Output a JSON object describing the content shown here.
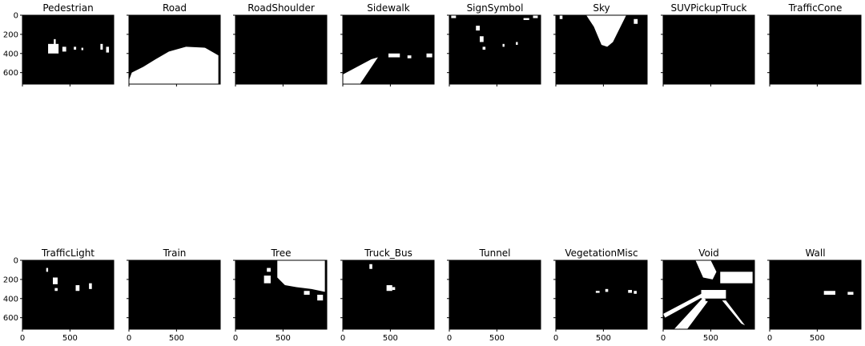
{
  "panels": [
    {
      "title": "Pedestrian",
      "mask": [
        {
          "type": "rect",
          "x": 270,
          "y": 300,
          "w": 110,
          "h": 100
        },
        {
          "type": "rect",
          "x": 330,
          "y": 250,
          "w": 20,
          "h": 60
        },
        {
          "type": "rect",
          "x": 420,
          "y": 330,
          "w": 40,
          "h": 50
        },
        {
          "type": "rect",
          "x": 540,
          "y": 330,
          "w": 25,
          "h": 30
        },
        {
          "type": "rect",
          "x": 620,
          "y": 340,
          "w": 20,
          "h": 25
        },
        {
          "type": "rect",
          "x": 820,
          "y": 300,
          "w": 25,
          "h": 60
        },
        {
          "type": "rect",
          "x": 880,
          "y": 330,
          "w": 30,
          "h": 60
        }
      ]
    },
    {
      "title": "Road",
      "mask": [
        {
          "type": "poly",
          "points": [
            [
              0,
              680
            ],
            [
              30,
              600
            ],
            [
              150,
              540
            ],
            [
              280,
              460
            ],
            [
              420,
              380
            ],
            [
              600,
              330
            ],
            [
              800,
              340
            ],
            [
              940,
              420
            ],
            [
              940,
              736
            ],
            [
              0,
              736
            ]
          ]
        }
      ]
    },
    {
      "title": "RoadShoulder",
      "mask": []
    },
    {
      "title": "Sidewalk",
      "mask": [
        {
          "type": "poly",
          "points": [
            [
              0,
              620
            ],
            [
              300,
              460
            ],
            [
              370,
              440
            ],
            [
              170,
              736
            ],
            [
              0,
              736
            ]
          ]
        },
        {
          "type": "rect",
          "x": 480,
          "y": 400,
          "w": 120,
          "h": 40
        },
        {
          "type": "rect",
          "x": 680,
          "y": 420,
          "w": 40,
          "h": 30
        },
        {
          "type": "rect",
          "x": 880,
          "y": 400,
          "w": 60,
          "h": 40
        }
      ]
    },
    {
      "title": "SignSymbol",
      "mask": [
        {
          "type": "rect",
          "x": 20,
          "y": 0,
          "w": 50,
          "h": 30
        },
        {
          "type": "rect",
          "x": 280,
          "y": 110,
          "w": 40,
          "h": 50
        },
        {
          "type": "rect",
          "x": 320,
          "y": 220,
          "w": 40,
          "h": 60
        },
        {
          "type": "rect",
          "x": 350,
          "y": 330,
          "w": 30,
          "h": 30
        },
        {
          "type": "rect",
          "x": 560,
          "y": 300,
          "w": 20,
          "h": 30
        },
        {
          "type": "rect",
          "x": 700,
          "y": 280,
          "w": 20,
          "h": 30
        },
        {
          "type": "rect",
          "x": 780,
          "y": 30,
          "w": 60,
          "h": 20
        },
        {
          "type": "rect",
          "x": 880,
          "y": 0,
          "w": 50,
          "h": 30
        }
      ]
    },
    {
      "title": "Sky",
      "mask": [
        {
          "type": "poly",
          "points": [
            [
              320,
              0
            ],
            [
              740,
              0
            ],
            [
              600,
              280
            ],
            [
              540,
              330
            ],
            [
              480,
              310
            ],
            [
              400,
              120
            ]
          ]
        },
        {
          "type": "rect",
          "x": 820,
          "y": 40,
          "w": 40,
          "h": 50
        },
        {
          "type": "rect",
          "x": 40,
          "y": 0,
          "w": 30,
          "h": 40
        }
      ]
    },
    {
      "title": "SUVPickupTruck",
      "mask": []
    },
    {
      "title": "TrafficCone",
      "mask": []
    },
    {
      "title": "TrafficLight",
      "mask": [
        {
          "type": "rect",
          "x": 250,
          "y": 80,
          "w": 20,
          "h": 40
        },
        {
          "type": "rect",
          "x": 320,
          "y": 180,
          "w": 50,
          "h": 70
        },
        {
          "type": "rect",
          "x": 340,
          "y": 290,
          "w": 30,
          "h": 30
        },
        {
          "type": "rect",
          "x": 560,
          "y": 260,
          "w": 40,
          "h": 60
        },
        {
          "type": "rect",
          "x": 700,
          "y": 240,
          "w": 30,
          "h": 60
        }
      ]
    },
    {
      "title": "Train",
      "mask": []
    },
    {
      "title": "Tree",
      "mask": [
        {
          "type": "poly",
          "points": [
            [
              440,
              0
            ],
            [
              940,
              0
            ],
            [
              940,
              330
            ],
            [
              800,
              300
            ],
            [
              640,
              280
            ],
            [
              520,
              260
            ],
            [
              440,
              180
            ]
          ]
        },
        {
          "type": "rect",
          "x": 300,
          "y": 160,
          "w": 70,
          "h": 80
        },
        {
          "type": "rect",
          "x": 330,
          "y": 80,
          "w": 40,
          "h": 40
        },
        {
          "type": "rect",
          "x": 720,
          "y": 320,
          "w": 60,
          "h": 40
        },
        {
          "type": "rect",
          "x": 860,
          "y": 360,
          "w": 60,
          "h": 60
        }
      ]
    },
    {
      "title": "Truck_Bus",
      "mask": [
        {
          "type": "rect",
          "x": 280,
          "y": 40,
          "w": 30,
          "h": 50
        },
        {
          "type": "rect",
          "x": 460,
          "y": 260,
          "w": 60,
          "h": 60
        },
        {
          "type": "rect",
          "x": 520,
          "y": 280,
          "w": 30,
          "h": 30
        }
      ]
    },
    {
      "title": "Tunnel",
      "mask": []
    },
    {
      "title": "VegetationMisc",
      "mask": [
        {
          "type": "rect",
          "x": 420,
          "y": 320,
          "w": 40,
          "h": 20
        },
        {
          "type": "rect",
          "x": 520,
          "y": 300,
          "w": 30,
          "h": 30
        },
        {
          "type": "rect",
          "x": 760,
          "y": 310,
          "w": 40,
          "h": 30
        },
        {
          "type": "rect",
          "x": 820,
          "y": 320,
          "w": 30,
          "h": 30
        }
      ]
    },
    {
      "title": "Void",
      "mask": [
        {
          "type": "poly",
          "points": [
            [
              340,
              0
            ],
            [
              500,
              0
            ],
            [
              560,
              120
            ],
            [
              520,
              200
            ],
            [
              420,
              180
            ]
          ]
        },
        {
          "type": "rect",
          "x": 600,
          "y": 120,
          "w": 340,
          "h": 120
        },
        {
          "type": "rect",
          "x": 400,
          "y": 310,
          "w": 260,
          "h": 90
        },
        {
          "type": "poly",
          "points": [
            [
              0,
              560
            ],
            [
              420,
              340
            ],
            [
              440,
              370
            ],
            [
              20,
              600
            ]
          ]
        },
        {
          "type": "poly",
          "points": [
            [
              100,
              736
            ],
            [
              420,
              390
            ],
            [
              450,
              410
            ],
            [
              150,
              736
            ]
          ]
        },
        {
          "type": "poly",
          "points": [
            [
              150,
              736
            ],
            [
              430,
              420
            ],
            [
              470,
              430
            ],
            [
              240,
              736
            ]
          ]
        },
        {
          "type": "poly",
          "points": [
            [
              620,
              420
            ],
            [
              820,
              660
            ],
            [
              860,
              680
            ],
            [
              660,
              420
            ]
          ]
        }
      ]
    },
    {
      "title": "Wall",
      "mask": [
        {
          "type": "rect",
          "x": 570,
          "y": 320,
          "w": 120,
          "h": 40
        },
        {
          "type": "rect",
          "x": 820,
          "y": 330,
          "w": 60,
          "h": 30
        }
      ]
    }
  ],
  "axes": {
    "xlim": [
      0,
      960
    ],
    "ylim": [
      720,
      0
    ],
    "xticks": [
      0,
      500
    ],
    "xtick_labels": [
      "0",
      "500"
    ],
    "yticks": [
      0,
      200,
      400,
      600
    ],
    "ytick_labels": [
      "0",
      "200",
      "400",
      "600"
    ]
  },
  "colors": {
    "mask": "#ffffff",
    "background": "#000000",
    "frame": "#000000"
  }
}
